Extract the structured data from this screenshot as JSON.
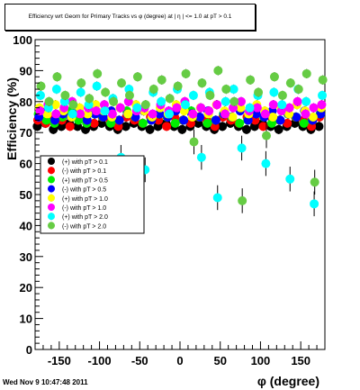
{
  "title": "Efficiency wrt Geom for Primary Tracks vs φ (degree) at |  η | <= 1.0 at pT > 0.1",
  "timestamp": "Wed Nov  9 10:47:48 2011",
  "chart_data": {
    "type": "scatter",
    "xlabel": "φ (degree)",
    "ylabel": "Efficiency (%)",
    "xlim": [
      -180,
      180
    ],
    "ylim": [
      0,
      100
    ],
    "xticks": [
      -150,
      -100,
      -50,
      0,
      50,
      100,
      150
    ],
    "yticks": [
      0,
      10,
      20,
      30,
      40,
      50,
      60,
      70,
      80,
      90,
      100
    ],
    "grid": false,
    "legend_position": "left-middle",
    "x": [
      -175,
      -165,
      -155,
      -145,
      -135,
      -125,
      -115,
      -105,
      -95,
      -85,
      -75,
      -65,
      -55,
      -45,
      -35,
      -25,
      -15,
      -5,
      5,
      15,
      25,
      35,
      45,
      55,
      65,
      75,
      85,
      95,
      105,
      115,
      125,
      135,
      145,
      155,
      165,
      175
    ],
    "series": [
      {
        "name": "(+) with pT > 0.1",
        "color": "#000000",
        "values": [
          72,
          73,
          71,
          72,
          73,
          72,
          71,
          72,
          73,
          72,
          71,
          72,
          73,
          72,
          71,
          72,
          73,
          72,
          71,
          72,
          73,
          72,
          71,
          72,
          73,
          72,
          71,
          72,
          73,
          72,
          71,
          72,
          73,
          72,
          71,
          72
        ]
      },
      {
        "name": "(-) with pT > 0.1",
        "color": "#ff0000",
        "values": [
          74,
          73,
          75,
          74,
          72,
          75,
          74,
          73,
          75,
          74,
          72,
          75,
          74,
          73,
          75,
          74,
          72,
          75,
          74,
          73,
          75,
          74,
          72,
          75,
          74,
          73,
          75,
          74,
          72,
          75,
          74,
          73,
          75,
          74,
          72,
          75
        ]
      },
      {
        "name": "(+) with pT > 0.5",
        "color": "#00ee00",
        "values": [
          76,
          74,
          73,
          75,
          77,
          74,
          73,
          76,
          75,
          73,
          74,
          77,
          75,
          73,
          74,
          76,
          75,
          73,
          74,
          77,
          75,
          73,
          74,
          76,
          75,
          73,
          74,
          77,
          75,
          73,
          74,
          76,
          75,
          73,
          74,
          76
        ]
      },
      {
        "name": "(-) with pT > 0.5",
        "color": "#0000ff",
        "values": [
          75,
          77,
          74,
          76,
          75,
          77,
          74,
          76,
          75,
          77,
          74,
          76,
          75,
          77,
          74,
          76,
          75,
          77,
          74,
          76,
          75,
          77,
          74,
          76,
          75,
          77,
          74,
          76,
          75,
          77,
          74,
          76,
          75,
          77,
          74,
          76
        ]
      },
      {
        "name": "(+) with pT > 1.0",
        "color": "#ffff00",
        "values": [
          78,
          76,
          79,
          77,
          75,
          78,
          76,
          79,
          77,
          75,
          78,
          76,
          79,
          77,
          75,
          78,
          76,
          79,
          77,
          75,
          78,
          76,
          79,
          77,
          75,
          78,
          76,
          79,
          77,
          75,
          78,
          76,
          79,
          77,
          75,
          78
        ]
      },
      {
        "name": "(-) with pT > 1.0",
        "color": "#ff00ff",
        "values": [
          77,
          79,
          76,
          78,
          80,
          76,
          78,
          77,
          79,
          76,
          78,
          80,
          77,
          78,
          76,
          79,
          77,
          78,
          80,
          76,
          78,
          77,
          79,
          76,
          78,
          80,
          77,
          78,
          76,
          79,
          77,
          78,
          80,
          76,
          78,
          79
        ]
      },
      {
        "name": "(+) with pT > 2.0",
        "color": "#00ffff",
        "values": [
          82,
          78,
          84,
          80,
          76,
          83,
          79,
          85,
          77,
          81,
          62,
          84,
          78,
          58,
          83,
          80,
          76,
          84,
          79,
          82,
          62,
          83,
          49,
          80,
          84,
          65,
          78,
          82,
          60,
          83,
          79,
          55,
          84,
          80,
          47,
          82
        ]
      },
      {
        "name": "(-) with pT > 2.0",
        "color": "#66cc44",
        "values": [
          85,
          80,
          88,
          82,
          79,
          86,
          81,
          89,
          83,
          80,
          86,
          82,
          88,
          79,
          84,
          87,
          81,
          85,
          89,
          67,
          86,
          82,
          90,
          84,
          80,
          48,
          87,
          83,
          69,
          88,
          82,
          86,
          84,
          89,
          54,
          87
        ]
      }
    ]
  }
}
